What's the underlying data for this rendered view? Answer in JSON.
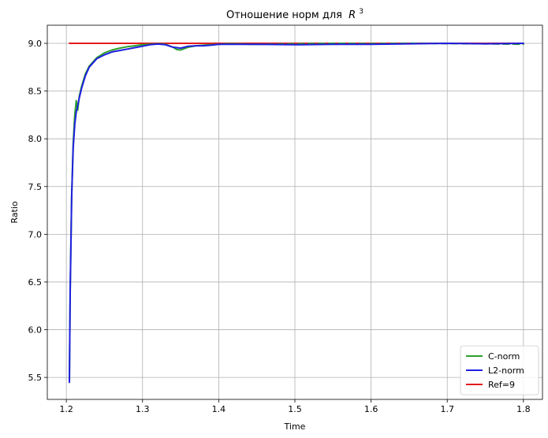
{
  "chart_data": {
    "type": "line",
    "title": "Отношение норм для",
    "title_math": "R",
    "title_sup": "3",
    "xlabel": "Time",
    "ylabel": "Ratio",
    "xlim": [
      1.175,
      1.825
    ],
    "ylim": [
      5.27,
      9.19
    ],
    "xticks": [
      1.2,
      1.3,
      1.4,
      1.5,
      1.6,
      1.7,
      1.8
    ],
    "xtick_labels": [
      "1.2",
      "1.3",
      "1.4",
      "1.5",
      "1.6",
      "1.7",
      "1.8"
    ],
    "yticks": [
      5.5,
      6.0,
      6.5,
      7.0,
      7.5,
      8.0,
      8.5,
      9.0
    ],
    "ytick_labels": [
      "5.5",
      "6.0",
      "6.5",
      "7.0",
      "7.5",
      "8.0",
      "8.5",
      "9.0"
    ],
    "grid": true,
    "legend_position": "bottom-right",
    "series": [
      {
        "name": "C-norm",
        "color": "#2ca02c",
        "dash": "none",
        "x": [
          1.204,
          1.205,
          1.207,
          1.209,
          1.211,
          1.213,
          1.215,
          1.217,
          1.22,
          1.225,
          1.23,
          1.24,
          1.25,
          1.26,
          1.27,
          1.28,
          1.29,
          1.3,
          1.31,
          1.32,
          1.33,
          1.34,
          1.345,
          1.35,
          1.355,
          1.36,
          1.37,
          1.38,
          1.39,
          1.4,
          1.41,
          1.42,
          1.43,
          1.44,
          1.45
        ],
        "y": [
          5.45,
          6.4,
          7.4,
          7.95,
          8.25,
          8.4,
          8.3,
          8.45,
          8.55,
          8.68,
          8.76,
          8.85,
          8.9,
          8.93,
          8.95,
          8.965,
          8.975,
          8.985,
          8.99,
          8.995,
          8.99,
          8.96,
          8.935,
          8.93,
          8.945,
          8.96,
          8.975,
          8.98,
          8.985,
          8.99,
          8.995,
          8.995,
          8.993,
          8.99,
          8.99
        ]
      },
      {
        "name": "C-norm",
        "color": "#2ca02c",
        "dash": "8,5",
        "x": [
          1.45,
          1.5,
          1.55,
          1.6,
          1.65,
          1.7,
          1.75,
          1.8
        ],
        "y": [
          8.99,
          8.995,
          9.0,
          8.997,
          9.0,
          8.998,
          8.995,
          8.99
        ]
      },
      {
        "name": "L2-norm",
        "color": "#1f1fe0",
        "dash": "none",
        "x": [
          1.204,
          1.205,
          1.207,
          1.209,
          1.211,
          1.213,
          1.215,
          1.217,
          1.22,
          1.225,
          1.23,
          1.24,
          1.25,
          1.26,
          1.27,
          1.28,
          1.29,
          1.3,
          1.31,
          1.32,
          1.33,
          1.34,
          1.35,
          1.36,
          1.37,
          1.38,
          1.39,
          1.4,
          1.45,
          1.5,
          1.55,
          1.6,
          1.65,
          1.7,
          1.75,
          1.8
        ],
        "y": [
          5.45,
          6.4,
          7.4,
          7.9,
          8.15,
          8.28,
          8.35,
          8.43,
          8.53,
          8.66,
          8.75,
          8.84,
          8.88,
          8.91,
          8.925,
          8.94,
          8.955,
          8.97,
          8.985,
          8.993,
          8.985,
          8.96,
          8.95,
          8.97,
          8.975,
          8.975,
          8.98,
          8.99,
          8.99,
          8.985,
          8.99,
          8.99,
          8.995,
          9.0,
          8.995,
          9.0
        ]
      },
      {
        "name": "Ref=9",
        "color": "#e31a1c",
        "dash": "none",
        "x": [
          1.204,
          1.8
        ],
        "y": [
          9.0,
          9.0
        ]
      }
    ],
    "legend": [
      {
        "label": "C-norm",
        "color": "#2ca02c"
      },
      {
        "label": "L2-norm",
        "color": "#1f1fe0"
      },
      {
        "label": "Ref=9",
        "color": "#e31a1c"
      }
    ]
  }
}
